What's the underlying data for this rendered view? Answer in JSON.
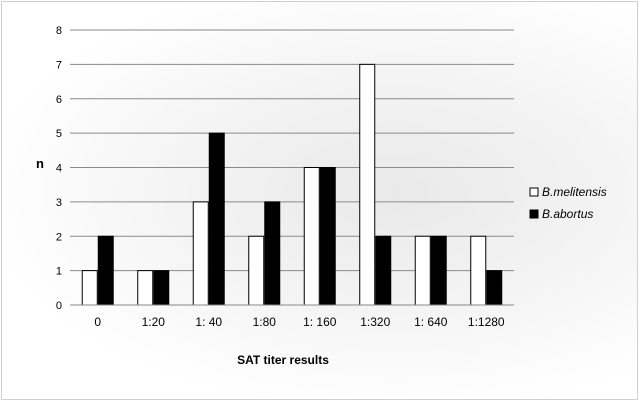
{
  "chart_data": {
    "type": "bar",
    "categories": [
      "0",
      "1:20",
      "1: 40",
      "1:80",
      "1: 160",
      "1:320",
      "1: 640",
      "1:1280"
    ],
    "series": [
      {
        "name": "B.melitensis",
        "values": [
          1,
          1,
          3,
          2,
          4,
          7,
          2,
          2
        ],
        "color": "#ffffff"
      },
      {
        "name": "B.abortus",
        "values": [
          2,
          1,
          5,
          3,
          4,
          2,
          2,
          1
        ],
        "color": "#000000"
      }
    ],
    "xlabel": "SAT titer results",
    "ylabel": "n",
    "ylim": [
      0,
      8
    ],
    "yticks": [
      "0",
      "1",
      "2",
      "3",
      "4",
      "5",
      "6",
      "7",
      "8"
    ],
    "grid": true,
    "legend_position": "right"
  }
}
